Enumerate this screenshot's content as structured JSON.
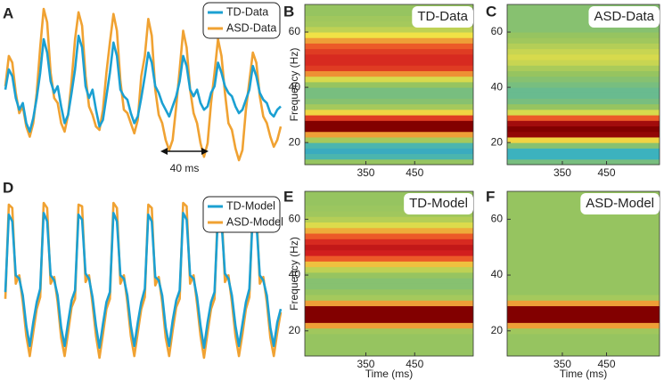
{
  "chart_data": [
    {
      "type": "line",
      "panel": "A",
      "legend": "upper right",
      "annotation": "40 ms",
      "series": [
        {
          "name": "TD-Data",
          "color": "#1ba0d2",
          "values": [
            50,
            62,
            58,
            45,
            38,
            42,
            30,
            25,
            33,
            45,
            60,
            80,
            72,
            55,
            48,
            52,
            40,
            30,
            35,
            48,
            62,
            82,
            75,
            52,
            45,
            50,
            38,
            28,
            32,
            46,
            60,
            78,
            70,
            50,
            46,
            44,
            36,
            30,
            34,
            45,
            58,
            72,
            66,
            52,
            48,
            42,
            38,
            34,
            40,
            46,
            55,
            70,
            64,
            50,
            46,
            50,
            42,
            38,
            40,
            48,
            52,
            66,
            60,
            52,
            48,
            46,
            40,
            36,
            38,
            44,
            50,
            64,
            58,
            48,
            44,
            42,
            36,
            34,
            38,
            40
          ]
        },
        {
          "name": "ASD-Data",
          "color": "#f0a232",
          "values": [
            52,
            70,
            66,
            48,
            36,
            40,
            28,
            22,
            30,
            48,
            75,
            98,
            90,
            60,
            45,
            42,
            30,
            25,
            35,
            55,
            80,
            96,
            88,
            58,
            40,
            35,
            28,
            26,
            38,
            60,
            78,
            95,
            85,
            55,
            38,
            36,
            30,
            24,
            32,
            58,
            70,
            92,
            82,
            50,
            35,
            30,
            20,
            14,
            20,
            40,
            62,
            85,
            75,
            50,
            36,
            30,
            18,
            10,
            18,
            42,
            60,
            80,
            70,
            48,
            30,
            26,
            15,
            8,
            14,
            38,
            55,
            72,
            66,
            46,
            34,
            30,
            22,
            16,
            20,
            28
          ]
        }
      ]
    },
    {
      "type": "heatmap",
      "panel": "B",
      "title": "TD-Data",
      "ylabel": "Frequency (Hz)",
      "xlim": [
        225,
        570
      ],
      "xticks": [
        350,
        450
      ],
      "ylim": [
        12,
        70
      ],
      "yticks": [
        20,
        40,
        60
      ],
      "y": [
        13,
        15,
        17,
        19,
        21,
        23,
        25,
        27,
        29,
        31,
        33,
        35,
        37,
        39,
        41,
        43,
        45,
        47,
        49,
        51,
        53,
        55,
        57,
        59,
        61,
        63,
        65,
        67,
        69
      ],
      "z": [
        0.42,
        0.32,
        0.28,
        0.32,
        0.45,
        0.7,
        1,
        1,
        0.85,
        0.62,
        0.45,
        0.4,
        0.38,
        0.38,
        0.42,
        0.55,
        0.72,
        0.85,
        0.88,
        0.88,
        0.85,
        0.8,
        0.7,
        0.6,
        0.5,
        0.45,
        0.44,
        0.42,
        0.42
      ]
    },
    {
      "type": "heatmap",
      "panel": "C",
      "title": "ASD-Data",
      "xlim": [
        225,
        570
      ],
      "xticks": [
        350,
        450
      ],
      "ylim": [
        12,
        70
      ],
      "yticks": [
        20,
        40,
        60
      ],
      "y": [
        13,
        15,
        17,
        19,
        21,
        23,
        25,
        27,
        29,
        31,
        33,
        35,
        37,
        39,
        41,
        43,
        45,
        47,
        49,
        51,
        53,
        55,
        57,
        59,
        61,
        63,
        65,
        67,
        69
      ],
      "z": [
        0.38,
        0.3,
        0.3,
        0.4,
        0.62,
        0.98,
        1,
        0.96,
        0.8,
        0.55,
        0.42,
        0.38,
        0.36,
        0.36,
        0.38,
        0.4,
        0.42,
        0.46,
        0.52,
        0.55,
        0.52,
        0.48,
        0.44,
        0.42,
        0.4,
        0.4,
        0.4,
        0.4,
        0.4
      ]
    },
    {
      "type": "line",
      "panel": "D",
      "legend": "upper right",
      "series": [
        {
          "name": "TD-Model",
          "color": "#1ba0d2",
          "values": [
            40,
            86,
            82,
            50,
            48,
            38,
            20,
            8,
            22,
            34,
            42,
            87,
            82,
            50,
            47,
            38,
            19,
            8,
            22,
            35,
            41,
            86,
            83,
            51,
            48,
            37,
            20,
            7,
            21,
            34,
            40,
            87,
            82,
            50,
            48,
            38,
            20,
            8,
            22,
            34,
            42,
            86,
            82,
            49,
            47,
            38,
            19,
            8,
            23,
            35,
            41,
            87,
            83,
            50,
            48,
            37,
            20,
            7,
            22,
            34,
            40,
            86,
            82,
            51,
            48,
            38,
            20,
            8,
            21,
            34,
            42,
            87,
            82,
            50,
            47,
            38,
            19,
            8,
            22,
            30
          ]
        },
        {
          "name": "ASD-Model",
          "color": "#f0a232",
          "values": [
            36,
            92,
            90,
            45,
            50,
            34,
            14,
            2,
            16,
            30,
            37,
            93,
            90,
            45,
            49,
            34,
            13,
            2,
            16,
            31,
            36,
            92,
            91,
            46,
            50,
            33,
            14,
            1,
            15,
            30,
            36,
            93,
            90,
            45,
            50,
            34,
            14,
            2,
            16,
            30,
            37,
            92,
            90,
            44,
            49,
            34,
            13,
            2,
            17,
            31,
            36,
            93,
            91,
            45,
            50,
            33,
            14,
            1,
            16,
            30,
            36,
            92,
            90,
            46,
            50,
            34,
            14,
            2,
            15,
            30,
            37,
            93,
            90,
            45,
            49,
            34,
            13,
            2,
            16,
            28
          ]
        }
      ]
    },
    {
      "type": "heatmap",
      "panel": "E",
      "title": "TD-Model",
      "ylabel": "Frequency (Hz)",
      "xlabel": "Time (ms)",
      "xlim": [
        225,
        570
      ],
      "xticks": [
        350,
        450
      ],
      "ylim": [
        11,
        70
      ],
      "yticks": [
        20,
        40,
        60
      ],
      "y": [
        12,
        14,
        16,
        18,
        20,
        22,
        24,
        26,
        28,
        30,
        32,
        34,
        36,
        38,
        40,
        42,
        44,
        46,
        48,
        50,
        52,
        54,
        56,
        58,
        60,
        62,
        64,
        66,
        68,
        70
      ],
      "z": [
        0.42,
        0.42,
        0.42,
        0.42,
        0.44,
        0.7,
        1,
        1,
        1,
        0.7,
        0.45,
        0.42,
        0.4,
        0.4,
        0.42,
        0.5,
        0.65,
        0.8,
        0.9,
        0.92,
        0.88,
        0.8,
        0.68,
        0.56,
        0.48,
        0.44,
        0.43,
        0.42,
        0.42,
        0.42
      ]
    },
    {
      "type": "heatmap",
      "panel": "F",
      "title": "ASD-Model",
      "xlabel": "Time (ms)",
      "xlim": [
        225,
        570
      ],
      "xticks": [
        350,
        450
      ],
      "ylim": [
        11,
        70
      ],
      "yticks": [
        20,
        40,
        60
      ],
      "y": [
        12,
        14,
        16,
        18,
        20,
        22,
        24,
        26,
        28,
        30,
        32,
        34,
        36,
        38,
        40,
        42,
        44,
        46,
        48,
        50,
        52,
        54,
        56,
        58,
        60,
        62,
        64,
        66,
        68,
        70
      ],
      "z": [
        0.42,
        0.42,
        0.42,
        0.42,
        0.44,
        0.7,
        1,
        1,
        1,
        0.7,
        0.45,
        0.42,
        0.42,
        0.42,
        0.42,
        0.42,
        0.42,
        0.42,
        0.42,
        0.42,
        0.42,
        0.42,
        0.42,
        0.42,
        0.42,
        0.42,
        0.42,
        0.42,
        0.42,
        0.42
      ]
    }
  ]
}
